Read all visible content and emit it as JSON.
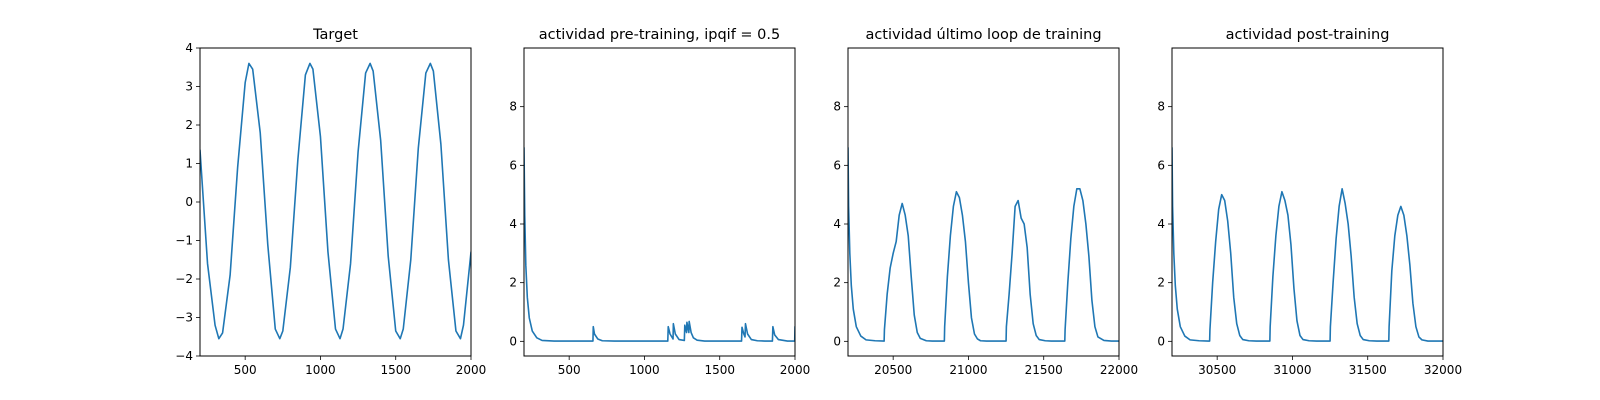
{
  "chart_data": [
    {
      "type": "line",
      "title": "Target",
      "xlim": [
        200,
        2000
      ],
      "ylim": [
        -4,
        4
      ],
      "xticks": [
        500,
        1000,
        1500,
        2000
      ],
      "yticks": [
        -4,
        -3,
        -2,
        -1,
        0,
        1,
        2,
        3,
        4
      ],
      "color": "#1f77b4",
      "series": [
        {
          "x": [
            200,
            250,
            300,
            325,
            350,
            400,
            450,
            500,
            525,
            550,
            600,
            650,
            700,
            730,
            750,
            800,
            850,
            900,
            930,
            950,
            1000,
            1050,
            1100,
            1130,
            1150,
            1200,
            1250,
            1300,
            1330,
            1350,
            1400,
            1450,
            1500,
            1530,
            1550,
            1600,
            1650,
            1700,
            1730,
            1750,
            1800,
            1850,
            1900,
            1930,
            1950,
            2000
          ],
          "y": [
            1.35,
            -1.6,
            -3.2,
            -3.55,
            -3.4,
            -1.9,
            0.9,
            3.1,
            3.6,
            3.45,
            1.8,
            -1.1,
            -3.3,
            -3.55,
            -3.35,
            -1.7,
            1.1,
            3.3,
            3.6,
            3.45,
            1.7,
            -1.3,
            -3.3,
            -3.55,
            -3.3,
            -1.6,
            1.3,
            3.35,
            3.6,
            3.4,
            1.6,
            -1.4,
            -3.35,
            -3.55,
            -3.3,
            -1.5,
            1.4,
            3.35,
            3.6,
            3.4,
            1.5,
            -1.5,
            -3.35,
            -3.55,
            -3.2,
            -1.3
          ]
        }
      ]
    },
    {
      "type": "line",
      "title": "actividad pre-training, ipqif = 0.5",
      "xlim": [
        200,
        2000
      ],
      "ylim": [
        -0.5,
        10
      ],
      "xticks": [
        500,
        1000,
        1500,
        2000
      ],
      "yticks": [
        0,
        2,
        4,
        6,
        8
      ],
      "color": "#1f77b4",
      "series": [
        {
          "x": [
            200,
            205,
            212,
            222,
            235,
            255,
            285,
            320,
            400,
            500,
            600,
            658,
            660,
            668,
            690,
            720,
            800,
            900,
            1000,
            1100,
            1155,
            1158,
            1170,
            1190,
            1192,
            1205,
            1230,
            1265,
            1268,
            1280,
            1282,
            1295,
            1297,
            1310,
            1325,
            1350,
            1400,
            1500,
            1600,
            1645,
            1648,
            1660,
            1668,
            1671,
            1685,
            1710,
            1750,
            1800,
            1850,
            1853,
            1865,
            1890,
            1950,
            1998,
            2000
          ],
          "y": [
            6.6,
            4.3,
            2.6,
            1.5,
            0.8,
            0.35,
            0.12,
            0.03,
            0.01,
            0.01,
            0.01,
            0.01,
            0.5,
            0.25,
            0.08,
            0.02,
            0.01,
            0.01,
            0.01,
            0.01,
            0.01,
            0.5,
            0.25,
            0.08,
            0.6,
            0.25,
            0.06,
            0.03,
            0.55,
            0.3,
            0.65,
            0.3,
            0.68,
            0.3,
            0.12,
            0.04,
            0.01,
            0.01,
            0.01,
            0.01,
            0.48,
            0.25,
            0.15,
            0.6,
            0.25,
            0.06,
            0.02,
            0.01,
            0.01,
            0.5,
            0.22,
            0.06,
            0.01,
            0.01,
            0.5
          ]
        }
      ]
    },
    {
      "type": "line",
      "title": "actividad último loop de training",
      "xlim": [
        20200,
        22000
      ],
      "ylim": [
        -0.5,
        10
      ],
      "xticks": [
        20500,
        21000,
        21500,
        22000
      ],
      "yticks": [
        0,
        2,
        4,
        6,
        8
      ],
      "color": "#1f77b4",
      "series": [
        {
          "x": [
            20200,
            20204,
            20212,
            20222,
            20235,
            20255,
            20285,
            20320,
            20380,
            20440,
            20442,
            20460,
            20480,
            20500,
            20520,
            20540,
            20560,
            20580,
            20600,
            20620,
            20640,
            20660,
            20680,
            20720,
            20760,
            20800,
            20840,
            20842,
            20860,
            20880,
            20900,
            20920,
            20940,
            20960,
            20980,
            21000,
            21020,
            21040,
            21060,
            21080,
            21120,
            21160,
            21200,
            21250,
            21252,
            21270,
            21290,
            21310,
            21330,
            21350,
            21370,
            21390,
            21410,
            21430,
            21450,
            21470,
            21510,
            21550,
            21600,
            21640,
            21642,
            21660,
            21680,
            21700,
            21720,
            21740,
            21760,
            21780,
            21800,
            21820,
            21840,
            21860,
            21900,
            21950,
            22000
          ],
          "y": [
            6.6,
            4.6,
            3.0,
            1.9,
            1.1,
            0.5,
            0.18,
            0.05,
            0.02,
            0.01,
            0.4,
            1.6,
            2.5,
            3.0,
            3.4,
            4.3,
            4.7,
            4.3,
            3.6,
            2.2,
            0.9,
            0.3,
            0.1,
            0.02,
            0.01,
            0.01,
            0.01,
            0.5,
            2.2,
            3.6,
            4.6,
            5.1,
            4.9,
            4.3,
            3.4,
            2.0,
            0.8,
            0.25,
            0.08,
            0.02,
            0.01,
            0.01,
            0.01,
            0.01,
            0.5,
            1.6,
            3.0,
            4.6,
            4.8,
            4.2,
            4.0,
            3.2,
            1.6,
            0.6,
            0.2,
            0.06,
            0.02,
            0.01,
            0.01,
            0.01,
            0.4,
            2.0,
            3.5,
            4.6,
            5.2,
            5.2,
            4.8,
            4.0,
            2.9,
            1.4,
            0.5,
            0.15,
            0.03,
            0.01,
            0.01
          ]
        }
      ]
    },
    {
      "type": "line",
      "title": "actividad post-training",
      "xlim": [
        30200,
        32000
      ],
      "ylim": [
        -0.5,
        10
      ],
      "xticks": [
        30500,
        31000,
        31500,
        32000
      ],
      "yticks": [
        0,
        2,
        4,
        6,
        8
      ],
      "color": "#1f77b4",
      "series": [
        {
          "x": [
            30200,
            30204,
            30212,
            30222,
            30235,
            30255,
            30285,
            30320,
            30380,
            30440,
            30450,
            30452,
            30470,
            30490,
            30510,
            30530,
            30550,
            30570,
            30590,
            30610,
            30630,
            30650,
            30670,
            30710,
            30760,
            30800,
            30850,
            30852,
            30870,
            30890,
            30910,
            30930,
            30950,
            30970,
            30990,
            31010,
            31030,
            31050,
            31070,
            31110,
            31160,
            31200,
            31250,
            31252,
            31270,
            31290,
            31310,
            31330,
            31350,
            31370,
            31390,
            31410,
            31430,
            31450,
            31470,
            31510,
            31560,
            31600,
            31640,
            31642,
            31660,
            31680,
            31700,
            31720,
            31740,
            31760,
            31780,
            31800,
            31820,
            31840,
            31860,
            31900,
            31950,
            32000
          ],
          "y": [
            6.6,
            4.6,
            3.0,
            1.9,
            1.1,
            0.5,
            0.18,
            0.05,
            0.02,
            0.01,
            0.01,
            0.4,
            2.0,
            3.4,
            4.5,
            5.0,
            4.8,
            4.1,
            3.0,
            1.5,
            0.6,
            0.2,
            0.06,
            0.02,
            0.01,
            0.01,
            0.01,
            0.5,
            2.2,
            3.6,
            4.6,
            5.1,
            4.8,
            4.3,
            3.3,
            1.8,
            0.7,
            0.2,
            0.06,
            0.02,
            0.01,
            0.01,
            0.01,
            0.5,
            2.0,
            3.5,
            4.6,
            5.2,
            4.7,
            4.0,
            2.9,
            1.5,
            0.6,
            0.2,
            0.06,
            0.02,
            0.01,
            0.01,
            0.01,
            0.5,
            2.4,
            3.6,
            4.3,
            4.6,
            4.3,
            3.6,
            2.6,
            1.3,
            0.5,
            0.15,
            0.05,
            0.01,
            0.01,
            0.01
          ]
        }
      ]
    }
  ]
}
